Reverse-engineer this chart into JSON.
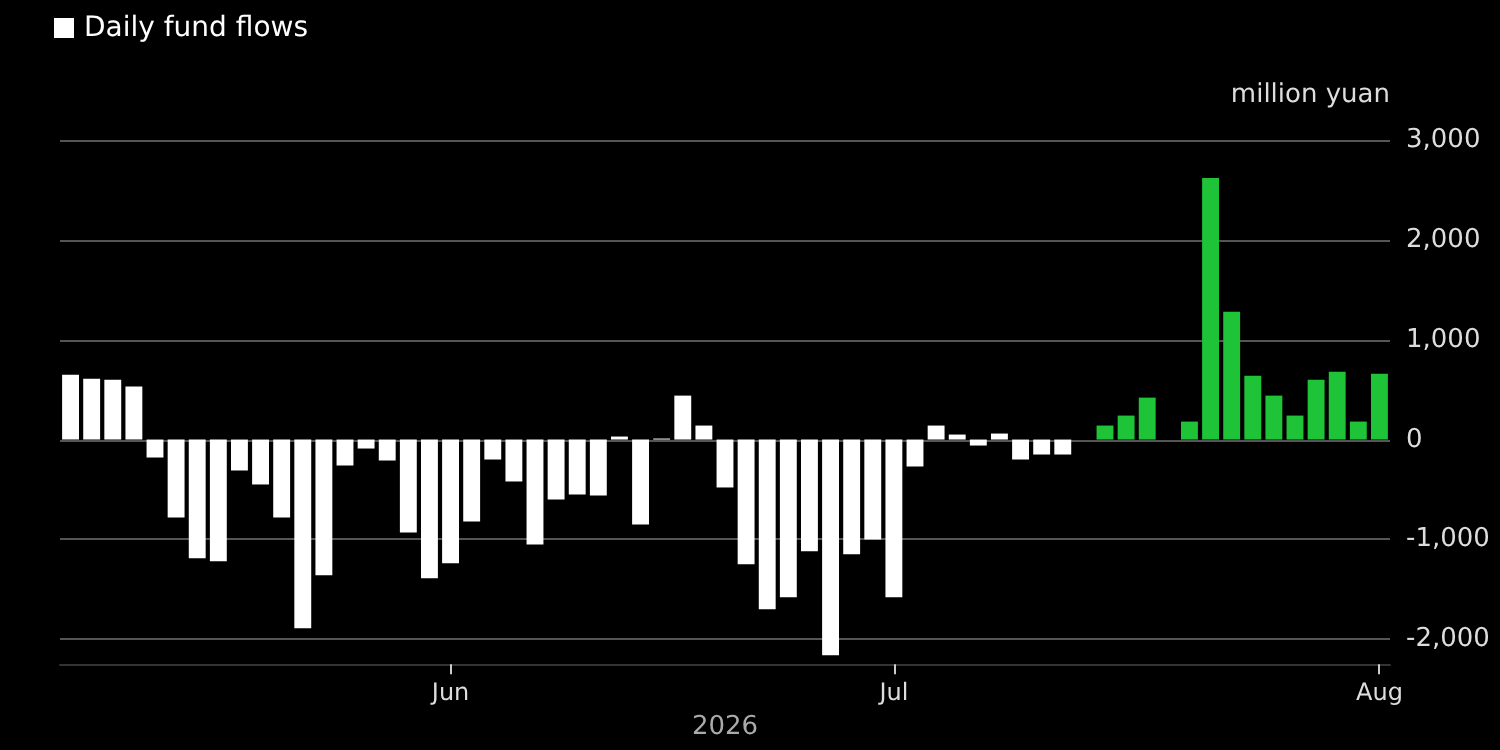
{
  "chart_data": {
    "type": "bar",
    "xlabel": "2026",
    "ylabel": "million yuan",
    "categories": [
      null,
      null,
      null,
      null,
      null,
      null,
      null,
      null,
      null,
      null,
      null,
      null,
      null,
      null,
      null,
      null,
      null,
      null,
      "Jun",
      null,
      null,
      null,
      null,
      null,
      null,
      null,
      null,
      null,
      null,
      null,
      null,
      null,
      null,
      null,
      null,
      null,
      null,
      null,
      null,
      "Jul",
      null,
      null,
      null,
      null,
      null,
      null,
      null,
      null,
      null,
      null,
      null,
      null,
      null,
      null,
      null,
      null,
      null,
      null,
      null,
      null,
      null,
      null,
      "Aug"
    ],
    "series": [
      {
        "name": "Daily fund flows",
        "color": "#ffffff",
        "values": [
          650,
          610,
          600,
          530,
          -180,
          -780,
          -1190,
          -1220,
          -310,
          -450,
          -780,
          -1890,
          -1360,
          -260,
          -90,
          -210,
          -930,
          -1390,
          -1240,
          -820,
          -200,
          -420,
          -1050,
          -600,
          -550,
          -560,
          30,
          -850,
          10,
          440,
          140,
          -480,
          -1250,
          -1700,
          -1580,
          -1120,
          -2160,
          -1150,
          -1000,
          -1580,
          -270,
          140,
          50,
          -60,
          60,
          -200,
          -150,
          -150,
          null,
          140,
          240,
          420,
          null,
          180,
          2620,
          1280,
          640,
          440,
          240,
          600,
          680,
          180,
          660
        ],
        "colors": [
          "#ffffff",
          "#ffffff",
          "#ffffff",
          "#ffffff",
          "#ffffff",
          "#ffffff",
          "#ffffff",
          "#ffffff",
          "#ffffff",
          "#ffffff",
          "#ffffff",
          "#ffffff",
          "#ffffff",
          "#ffffff",
          "#ffffff",
          "#ffffff",
          "#ffffff",
          "#ffffff",
          "#ffffff",
          "#ffffff",
          "#ffffff",
          "#ffffff",
          "#ffffff",
          "#ffffff",
          "#ffffff",
          "#ffffff",
          "#ffffff",
          "#ffffff",
          "#ffffff",
          "#ffffff",
          "#ffffff",
          "#ffffff",
          "#ffffff",
          "#ffffff",
          "#ffffff",
          "#ffffff",
          "#ffffff",
          "#ffffff",
          "#ffffff",
          "#ffffff",
          "#ffffff",
          "#ffffff",
          "#ffffff",
          "#ffffff",
          "#ffffff",
          "#ffffff",
          "#ffffff",
          "#ffffff",
          null,
          "#1ec337",
          "#1ec337",
          "#1ec337",
          null,
          "#1ec337",
          "#1ec337",
          "#1ec337",
          "#1ec337",
          "#1ec337",
          "#1ec337",
          "#1ec337",
          "#1ec337",
          "#1ec337",
          "#1ec337"
        ]
      }
    ],
    "ylim": [
      -2250,
      3000
    ],
    "yticks": [
      {
        "value": -2000,
        "label": "-2,000"
      },
      {
        "value": -1000,
        "label": "-1,000"
      },
      0,
      {
        "value": 1000,
        "label": "1,000"
      },
      {
        "value": 2000,
        "label": "2,000"
      },
      {
        "value": 3000,
        "label": "3,000"
      }
    ],
    "grid": "y",
    "legend": "top left"
  }
}
